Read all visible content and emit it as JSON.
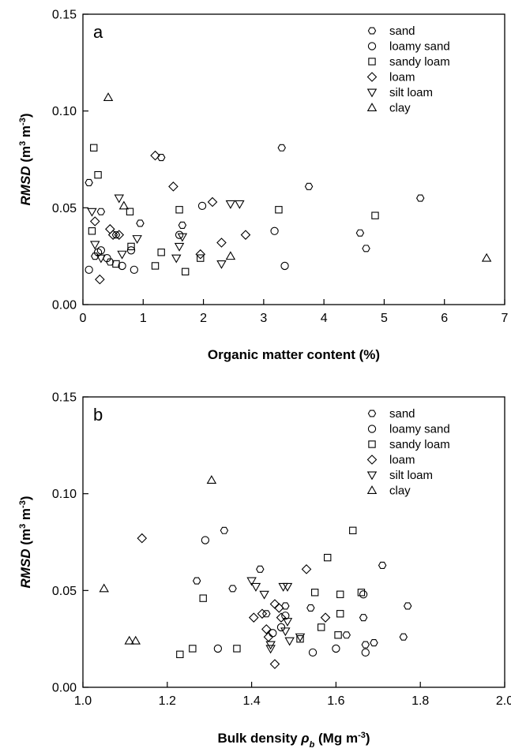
{
  "symbols": {
    "sand": "hexagon",
    "loamy sand": "circle",
    "sandy loam": "square",
    "loam": "diamond",
    "silt loam": "triangle-down",
    "clay": "triangle-up"
  },
  "chart_data": [
    {
      "type": "scatter",
      "panel_label": "a",
      "xlabel": "Organic matter content (%)",
      "ylabel_main": "RMSD",
      "ylabel_units": "(m",
      "ylabel_sup1": "3",
      "ylabel_mid": " m",
      "ylabel_sup2": "-3",
      "ylabel_end": ")",
      "xlim": [
        0,
        7
      ],
      "ylim": [
        0,
        0.15
      ],
      "xticks": [
        0,
        1,
        2,
        3,
        4,
        5,
        6,
        7
      ],
      "xtick_labels": [
        "0",
        "1",
        "2",
        "3",
        "4",
        "5",
        "6",
        "7"
      ],
      "yticks": [
        0,
        0.05,
        0.1,
        0.15
      ],
      "ytick_labels": [
        "0.00",
        "0.05",
        "0.10",
        "0.15"
      ],
      "legend_position": "top-right",
      "series": [
        {
          "name": "sand",
          "marker": "hexagon",
          "points": [
            [
              0.1,
              0.063
            ],
            [
              0.2,
              0.025
            ],
            [
              0.3,
              0.048
            ],
            [
              0.45,
              0.022
            ],
            [
              0.55,
              0.036
            ],
            [
              0.95,
              0.042
            ],
            [
              1.3,
              0.076
            ],
            [
              1.65,
              0.041
            ],
            [
              3.3,
              0.081
            ],
            [
              3.75,
              0.061
            ],
            [
              4.6,
              0.037
            ],
            [
              4.7,
              0.029
            ],
            [
              5.6,
              0.055
            ]
          ]
        },
        {
          "name": "loamy sand",
          "marker": "circle",
          "points": [
            [
              0.1,
              0.018
            ],
            [
              0.25,
              0.027
            ],
            [
              0.3,
              0.028
            ],
            [
              0.4,
              0.024
            ],
            [
              0.65,
              0.02
            ],
            [
              0.8,
              0.028
            ],
            [
              0.85,
              0.018
            ],
            [
              1.6,
              0.036
            ],
            [
              1.98,
              0.051
            ],
            [
              3.18,
              0.038
            ],
            [
              3.35,
              0.02
            ]
          ]
        },
        {
          "name": "sandy loam",
          "marker": "square",
          "points": [
            [
              0.15,
              0.038
            ],
            [
              0.18,
              0.081
            ],
            [
              0.25,
              0.067
            ],
            [
              0.55,
              0.021
            ],
            [
              0.78,
              0.048
            ],
            [
              0.8,
              0.03
            ],
            [
              1.2,
              0.02
            ],
            [
              1.3,
              0.027
            ],
            [
              1.6,
              0.049
            ],
            [
              1.7,
              0.017
            ],
            [
              1.95,
              0.024
            ],
            [
              3.25,
              0.049
            ],
            [
              4.85,
              0.046
            ]
          ]
        },
        {
          "name": "loam",
          "marker": "diamond",
          "points": [
            [
              0.2,
              0.043
            ],
            [
              0.28,
              0.013
            ],
            [
              0.45,
              0.039
            ],
            [
              0.5,
              0.036
            ],
            [
              0.6,
              0.036
            ],
            [
              1.2,
              0.077
            ],
            [
              1.5,
              0.061
            ],
            [
              1.95,
              0.026
            ],
            [
              2.15,
              0.053
            ],
            [
              2.3,
              0.032
            ],
            [
              2.7,
              0.036
            ]
          ]
        },
        {
          "name": "silt loam",
          "marker": "triangle-down",
          "points": [
            [
              0.15,
              0.048
            ],
            [
              0.2,
              0.031
            ],
            [
              0.3,
              0.024
            ],
            [
              0.6,
              0.055
            ],
            [
              0.65,
              0.026
            ],
            [
              0.9,
              0.034
            ],
            [
              1.55,
              0.024
            ],
            [
              1.6,
              0.03
            ],
            [
              1.65,
              0.035
            ],
            [
              2.3,
              0.021
            ],
            [
              2.45,
              0.052
            ],
            [
              2.6,
              0.052
            ]
          ]
        },
        {
          "name": "clay",
          "marker": "triangle-up",
          "points": [
            [
              0.42,
              0.107
            ],
            [
              0.68,
              0.051
            ],
            [
              2.45,
              0.025
            ],
            [
              6.7,
              0.024
            ]
          ]
        }
      ]
    },
    {
      "type": "scatter",
      "panel_label": "b",
      "xlabel_main": "Bulk density ",
      "xlabel_symbol": "ρ",
      "xlabel_sub": "b",
      "xlabel_units": " (Mg m",
      "xlabel_sup": "-3",
      "xlabel_end": ")",
      "ylabel_main": "RMSD",
      "ylabel_units": "(m",
      "ylabel_sup1": "3",
      "ylabel_mid": " m",
      "ylabel_sup2": "-3",
      "ylabel_end": ")",
      "xlim": [
        1.0,
        2.0
      ],
      "ylim": [
        0,
        0.15
      ],
      "xticks": [
        1.0,
        1.2,
        1.4,
        1.6,
        1.8,
        2.0
      ],
      "xtick_labels": [
        "1.0",
        "1.2",
        "1.4",
        "1.6",
        "1.8",
        "2.0"
      ],
      "yticks": [
        0,
        0.05,
        0.1,
        0.15
      ],
      "ytick_labels": [
        "0.00",
        "0.05",
        "0.10",
        "0.15"
      ],
      "legend_position": "top-right",
      "series": [
        {
          "name": "sand",
          "marker": "hexagon",
          "points": [
            [
              1.27,
              0.055
            ],
            [
              1.335,
              0.081
            ],
            [
              1.355,
              0.051
            ],
            [
              1.42,
              0.061
            ],
            [
              1.435,
              0.038
            ],
            [
              1.48,
              0.042
            ],
            [
              1.54,
              0.041
            ],
            [
              1.625,
              0.027
            ],
            [
              1.665,
              0.036
            ],
            [
              1.67,
              0.022
            ],
            [
              1.69,
              0.023
            ],
            [
              1.71,
              0.063
            ],
            [
              1.76,
              0.026
            ],
            [
              1.77,
              0.042
            ]
          ]
        },
        {
          "name": "loamy sand",
          "marker": "circle",
          "points": [
            [
              1.29,
              0.076
            ],
            [
              1.32,
              0.02
            ],
            [
              1.45,
              0.028
            ],
            [
              1.47,
              0.031
            ],
            [
              1.48,
              0.037
            ],
            [
              1.545,
              0.018
            ],
            [
              1.6,
              0.02
            ],
            [
              1.665,
              0.048
            ],
            [
              1.67,
              0.018
            ]
          ]
        },
        {
          "name": "sandy loam",
          "marker": "square",
          "points": [
            [
              1.23,
              0.017
            ],
            [
              1.26,
              0.02
            ],
            [
              1.285,
              0.046
            ],
            [
              1.365,
              0.02
            ],
            [
              1.515,
              0.025
            ],
            [
              1.55,
              0.049
            ],
            [
              1.565,
              0.031
            ],
            [
              1.58,
              0.067
            ],
            [
              1.605,
              0.027
            ],
            [
              1.61,
              0.048
            ],
            [
              1.61,
              0.038
            ],
            [
              1.64,
              0.081
            ],
            [
              1.66,
              0.049
            ]
          ]
        },
        {
          "name": "loam",
          "marker": "diamond",
          "points": [
            [
              1.14,
              0.077
            ],
            [
              1.405,
              0.036
            ],
            [
              1.425,
              0.038
            ],
            [
              1.435,
              0.03
            ],
            [
              1.44,
              0.026
            ],
            [
              1.455,
              0.043
            ],
            [
              1.455,
              0.012
            ],
            [
              1.465,
              0.041
            ],
            [
              1.47,
              0.036
            ],
            [
              1.53,
              0.061
            ],
            [
              1.575,
              0.036
            ]
          ]
        },
        {
          "name": "silt loam",
          "marker": "triangle-down",
          "points": [
            [
              1.4,
              0.055
            ],
            [
              1.41,
              0.052
            ],
            [
              1.43,
              0.048
            ],
            [
              1.445,
              0.022
            ],
            [
              1.445,
              0.02
            ],
            [
              1.475,
              0.052
            ],
            [
              1.48,
              0.029
            ],
            [
              1.485,
              0.034
            ],
            [
              1.49,
              0.024
            ],
            [
              1.515,
              0.026
            ],
            [
              1.485,
              0.052
            ]
          ]
        },
        {
          "name": "clay",
          "marker": "triangle-up",
          "points": [
            [
              1.05,
              0.051
            ],
            [
              1.11,
              0.024
            ],
            [
              1.125,
              0.024
            ],
            [
              1.305,
              0.107
            ]
          ]
        }
      ]
    }
  ]
}
